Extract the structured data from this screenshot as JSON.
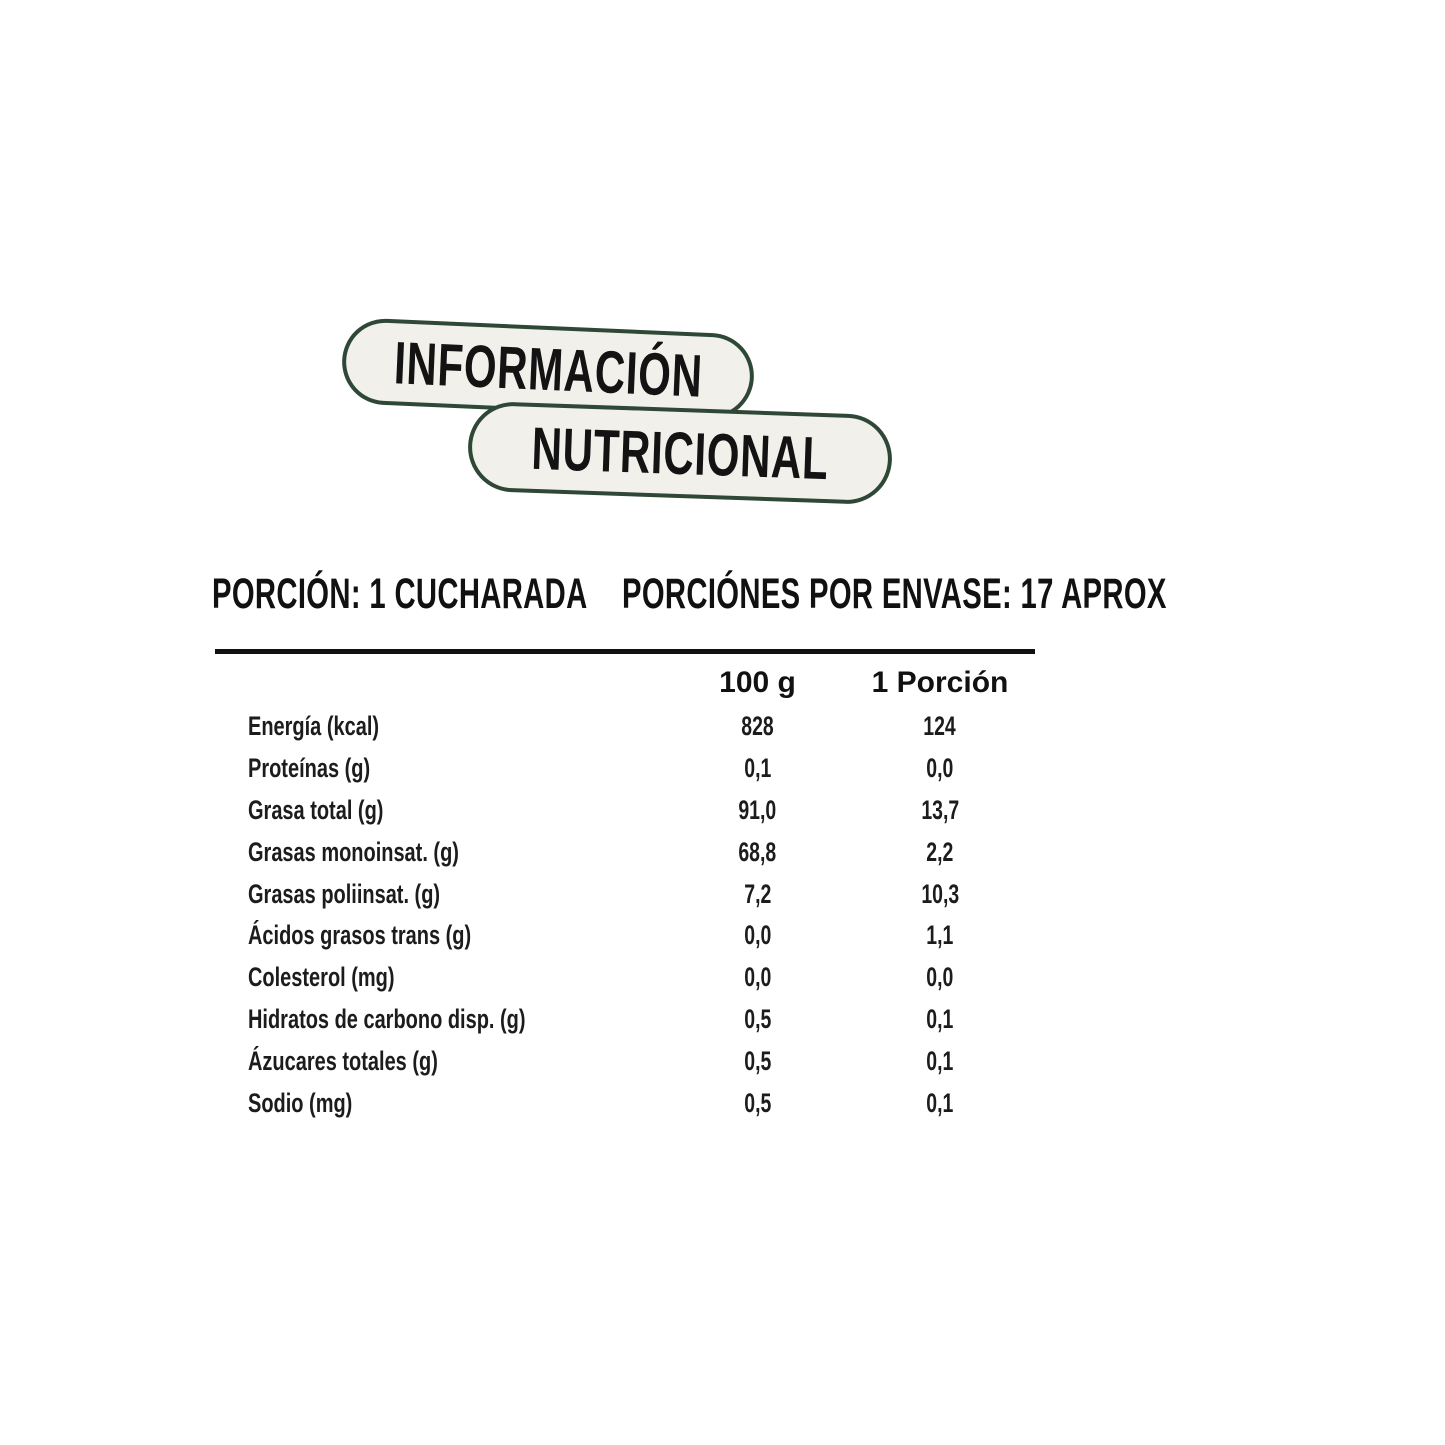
{
  "banner": {
    "line1": "INFORMACIÓN",
    "line2": "NUTRICIONAL"
  },
  "serving": {
    "portion": "PORCIÓN: 1 CUCHARADA",
    "per_container": "PORCIÓNES POR ENVASE: 17 APROX"
  },
  "colors": {
    "pill_fill": "#f2f0ea",
    "pill_border": "#2e4736",
    "text": "#111111",
    "background": "#ffffff"
  },
  "table": {
    "columns": [
      "100 g",
      "1 Porción"
    ],
    "rows": [
      {
        "label": "Energía (kcal)",
        "per100": "828",
        "perServing": "124"
      },
      {
        "label": "Proteínas (g)",
        "per100": "0,1",
        "perServing": "0,0"
      },
      {
        "label": "Grasa total (g)",
        "per100": "91,0",
        "perServing": "13,7"
      },
      {
        "label": "Grasas monoinsat. (g)",
        "per100": "68,8",
        "perServing": "2,2"
      },
      {
        "label": "Grasas poliinsat. (g)",
        "per100": "7,2",
        "perServing": "10,3"
      },
      {
        "label": "Ácidos grasos trans (g)",
        "per100": "0,0",
        "perServing": "1,1"
      },
      {
        "label": "Colesterol (mg)",
        "per100": "0,0",
        "perServing": "0,0"
      },
      {
        "label": "Hidratos de carbono disp. (g)",
        "per100": "0,5",
        "perServing": "0,1"
      },
      {
        "label": "Ázucares totales (g)",
        "per100": "0,5",
        "perServing": "0,1"
      },
      {
        "label": "Sodio (mg)",
        "per100": "0,5",
        "perServing": "0,1"
      }
    ]
  }
}
